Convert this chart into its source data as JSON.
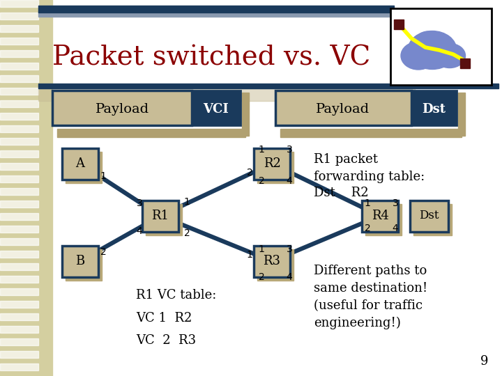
{
  "title": "Packet switched vs. VC",
  "title_color": "#8b0000",
  "slide_bg": "#ffffff",
  "left_col_color": "#d4cfa0",
  "box_tan": "#c8bc96",
  "box_dark": "#1a3a5c",
  "box_tan_border": "#1a3a5c",
  "top_bar_color": "#1a3a5c",
  "top_bar2_color": "#8a9ab0",
  "node_border": "#1a3a5c",
  "edge_color": "#1a3a5c",
  "bottom_text": [
    "R1 VC table:",
    "VC 1  R2",
    "VC  2  R3"
  ],
  "right_text_1": "R1 packet\nforwarding table:",
  "right_text_2": "Dst    R2",
  "right_text_3": "Different paths to\nsame destination!",
  "right_text_4": "(useful for traffic\nengineering!)",
  "page_number": "9"
}
